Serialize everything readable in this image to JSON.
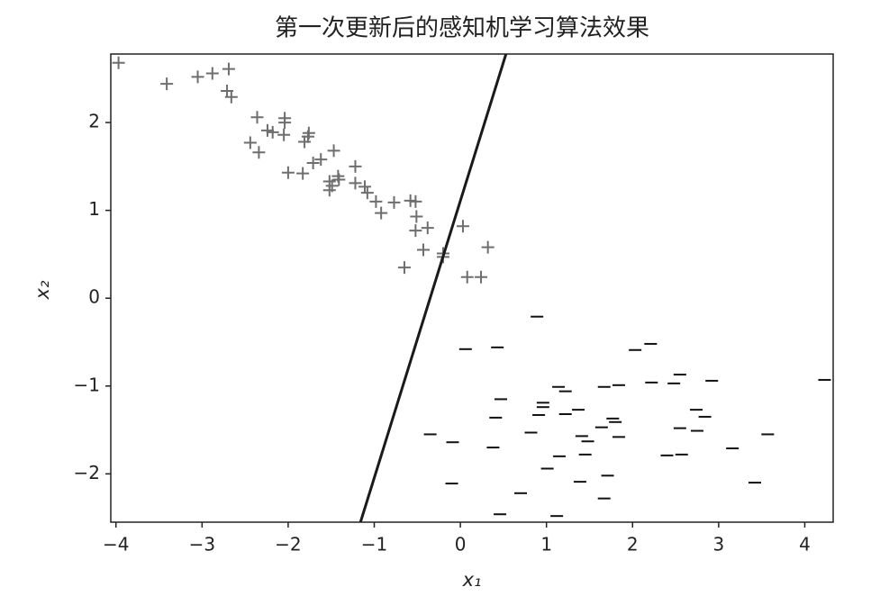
{
  "chart_data": {
    "type": "scatter",
    "title": "第一次更新后的感知机学习算法效果",
    "xlabel": "x₁",
    "ylabel": "x₂",
    "xlim": [
      -4.06,
      4.33
    ],
    "ylim": [
      -2.55,
      2.78
    ],
    "xticks": [
      {
        "value": -4,
        "label": "−4"
      },
      {
        "value": -3,
        "label": "−3"
      },
      {
        "value": -2,
        "label": "−2"
      },
      {
        "value": -1,
        "label": "−1"
      },
      0,
      1,
      2,
      3,
      4
    ],
    "yticks": [
      {
        "value": -2,
        "label": "−2"
      },
      {
        "value": -1,
        "label": "−1"
      },
      0,
      1,
      2
    ],
    "series": [
      {
        "marker": "+",
        "color": "#6e6e6e",
        "x": [
          -3.97,
          -3.41,
          -3.05,
          -2.88,
          -2.69,
          -2.71,
          -2.66,
          -2.36,
          -2.44,
          -2.34,
          -2.24,
          -2.18,
          -2.04,
          -2.04,
          -2.05,
          -1.81,
          -1.77,
          -1.76,
          -2.0,
          -1.83,
          -1.71,
          -1.62,
          -1.47,
          -1.52,
          -1.52,
          -1.49,
          -1.42,
          -1.41,
          -1.22,
          -1.22,
          -1.11,
          -1.08,
          -0.98,
          -0.92,
          -0.77,
          -0.58,
          -0.52,
          -0.51,
          -0.52,
          -0.38,
          -0.43,
          -0.65,
          -0.2,
          -0.2,
          0.03,
          0.32,
          0.08,
          0.24
        ],
        "y": [
          2.68,
          2.44,
          2.52,
          2.56,
          2.61,
          2.36,
          2.29,
          2.06,
          1.77,
          1.66,
          1.91,
          1.89,
          2.05,
          2.0,
          1.86,
          1.78,
          1.84,
          1.88,
          1.43,
          1.42,
          1.54,
          1.58,
          1.68,
          1.33,
          1.23,
          1.28,
          1.39,
          1.35,
          1.5,
          1.31,
          1.27,
          1.2,
          1.1,
          0.97,
          1.09,
          1.11,
          1.1,
          0.93,
          0.77,
          0.8,
          0.55,
          0.35,
          0.51,
          0.47,
          0.82,
          0.58,
          0.24,
          0.24
        ]
      },
      {
        "marker": "_",
        "color": "#111111",
        "x": [
          0.89,
          0.06,
          0.43,
          2.03,
          2.21,
          2.55,
          2.22,
          2.48,
          2.92,
          4.23,
          1.14,
          1.22,
          1.67,
          1.84,
          0.47,
          0.96,
          0.96,
          0.91,
          1.37,
          1.22,
          0.41,
          1.77,
          1.8,
          2.74,
          2.84,
          1.64,
          2.55,
          2.75,
          -0.35,
          0.82,
          1.41,
          1.84,
          1.48,
          3.57,
          -0.09,
          0.38,
          3.16,
          1.15,
          1.45,
          2.4,
          2.57,
          1.01,
          1.71,
          1.39,
          -0.1,
          3.42,
          0.7,
          1.67,
          0.46,
          1.12
        ],
        "y": [
          -0.21,
          -0.58,
          -0.56,
          -0.59,
          -0.52,
          -0.87,
          -0.96,
          -0.97,
          -0.94,
          -0.93,
          -1.01,
          -1.06,
          -1.01,
          -0.99,
          -1.15,
          -1.19,
          -1.24,
          -1.33,
          -1.27,
          -1.32,
          -1.36,
          -1.37,
          -1.41,
          -1.27,
          -1.35,
          -1.47,
          -1.48,
          -1.51,
          -1.55,
          -1.53,
          -1.57,
          -1.58,
          -1.63,
          -1.55,
          -1.64,
          -1.7,
          -1.71,
          -1.8,
          -1.78,
          -1.79,
          -1.78,
          -1.94,
          -2.02,
          -2.09,
          -2.11,
          -2.1,
          -2.22,
          -2.28,
          -2.46,
          -2.48
        ]
      },
      {
        "type": "line",
        "color": "#1a1a1a",
        "x": [
          0.53,
          -1.16
        ],
        "y": [
          2.78,
          -2.55
        ]
      }
    ]
  }
}
